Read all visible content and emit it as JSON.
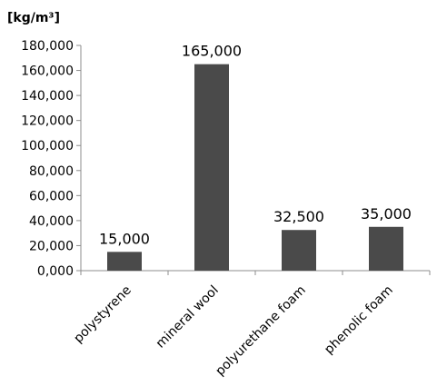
{
  "chart_data": {
    "type": "bar",
    "unit_label": "[kg/m³]",
    "categories": [
      "polystyrene",
      "mineral wool",
      "polyurethane foam",
      "phenolic foam"
    ],
    "values": [
      15,
      165,
      32.5,
      35
    ],
    "data_labels": [
      "15,000",
      "165,000",
      "32,500",
      "35,000"
    ],
    "ylim": [
      0,
      180
    ],
    "y_ticks": [
      0,
      20,
      40,
      60,
      80,
      100,
      120,
      140,
      160,
      180
    ],
    "y_tick_labels": [
      "0,000",
      "20,000",
      "40,000",
      "60,000",
      "80,000",
      "100,000",
      "120,000",
      "140,000",
      "160,000",
      "180,000"
    ],
    "bar_color": "#4a4a4a",
    "grid": false,
    "legend": false
  }
}
